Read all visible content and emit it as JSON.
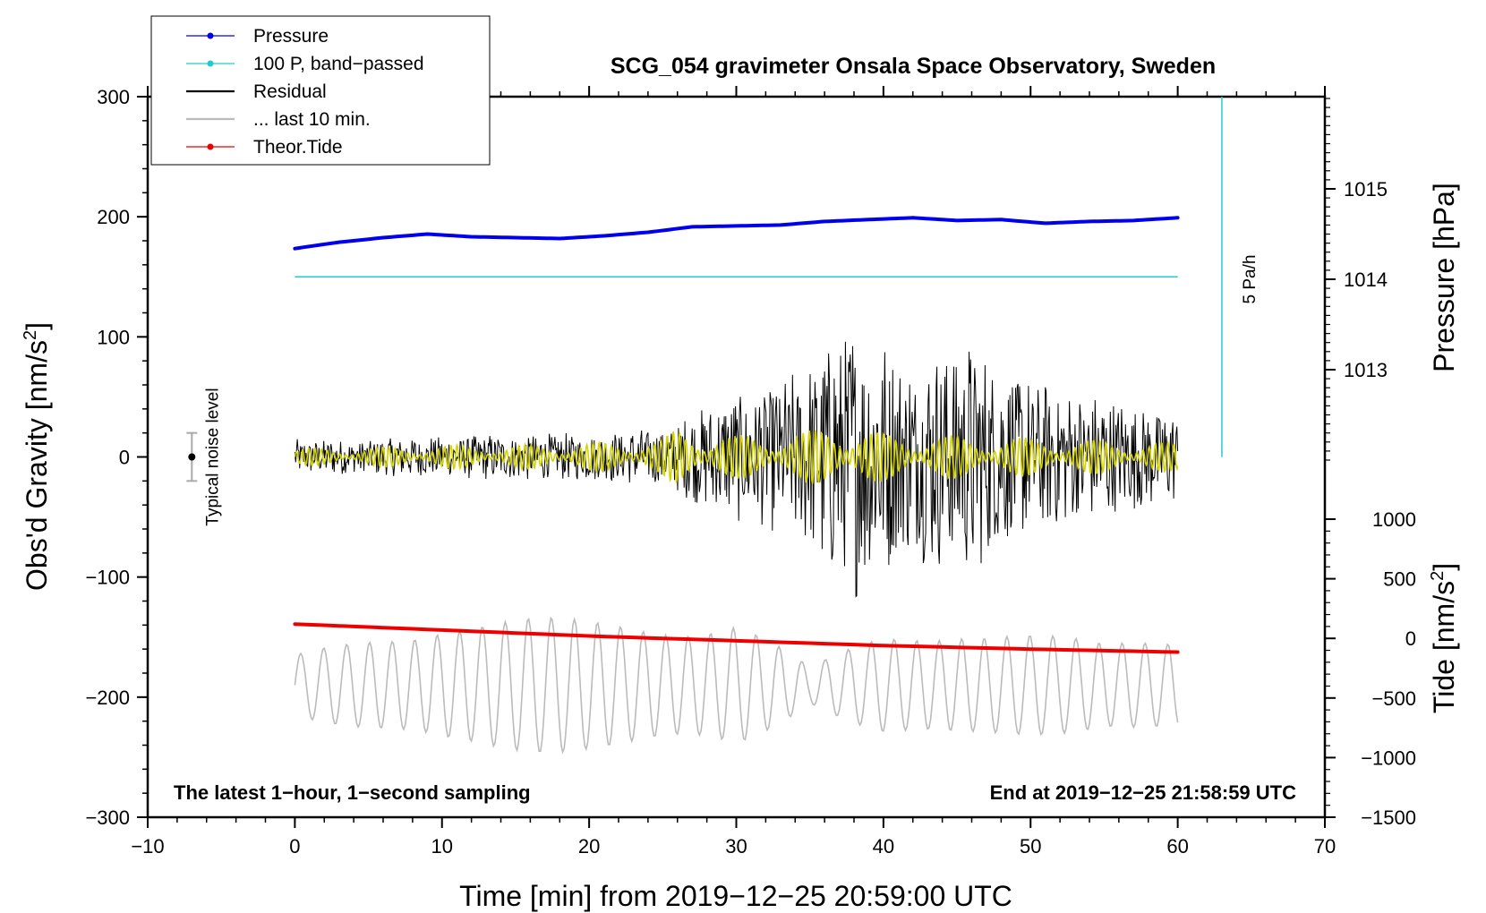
{
  "chart_data": {
    "type": "line",
    "title": "SCG_054 gravimeter Onsala Space Observatory, Sweden",
    "xlabel": "Time [min] from 2019−12−25 20:59:00 UTC",
    "ylabel_left": "Obs'd Gravity [nm/s",
    "ylabel_left_sup": "2",
    "ylabel_left_end": "]",
    "ylabel_right_pressure": "Pressure [hPa]",
    "ylabel_right_tide": "Tide [nm/s",
    "ylabel_right_tide_sup": "2",
    "ylabel_right_tide_end": "]",
    "xlim": [
      -10,
      70
    ],
    "ylim": [
      -300,
      300
    ],
    "pressure_axis_range": [
      1012.0,
      1016.0
    ],
    "tide_axis_range": [
      -1500,
      1500
    ],
    "x_ticks": [
      {
        "value": -10,
        "label": "−10"
      },
      {
        "value": 0,
        "label": "0"
      },
      {
        "value": 10,
        "label": "10"
      },
      {
        "value": 20,
        "label": "20"
      },
      {
        "value": 30,
        "label": "30"
      },
      {
        "value": 40,
        "label": "40"
      },
      {
        "value": 50,
        "label": "50"
      },
      {
        "value": 60,
        "label": "60"
      },
      {
        "value": 70,
        "label": "70"
      }
    ],
    "y_ticks": [
      {
        "value": 300,
        "label": "300"
      },
      {
        "value": 200,
        "label": "200"
      },
      {
        "value": 100,
        "label": "100"
      },
      {
        "value": 0,
        "label": "0"
      },
      {
        "value": -100,
        "label": "−100"
      },
      {
        "value": -200,
        "label": "−200"
      },
      {
        "value": -300,
        "label": "−300"
      }
    ],
    "pressure_ticks": [
      {
        "value": 1015,
        "label": "1015"
      },
      {
        "value": 1014,
        "label": "1014"
      },
      {
        "value": 1013,
        "label": "1013"
      }
    ],
    "tide_ticks": [
      {
        "value": 1000,
        "label": "1000"
      },
      {
        "value": 500,
        "label": "500"
      },
      {
        "value": 0,
        "label": "0"
      },
      {
        "value": -500,
        "label": "−500"
      },
      {
        "value": -1000,
        "label": "−1000"
      },
      {
        "value": -1500,
        "label": "−1500"
      }
    ],
    "legend": [
      {
        "name": "Pressure",
        "color": "#0000ee",
        "marker": true
      },
      {
        "name": "100 P, band−passed",
        "color": "#22cccc",
        "marker": true
      },
      {
        "name": "Residual",
        "color": "#000000",
        "marker": false
      },
      {
        "name": "... last 10 min.",
        "color": "#bbbbbb",
        "marker": false
      },
      {
        "name": "Theor.Tide",
        "color": "#ee0000",
        "marker": true
      }
    ],
    "series": [
      {
        "name": "Pressure",
        "color": "#0000ee",
        "axis": "pressure_hPa",
        "x": [
          0,
          3,
          6,
          9,
          12,
          15,
          18,
          21,
          24,
          27,
          30,
          33,
          36,
          39,
          42,
          45,
          48,
          51,
          54,
          57,
          60
        ],
        "values": [
          1014.34,
          1014.41,
          1014.46,
          1014.5,
          1014.47,
          1014.46,
          1014.45,
          1014.48,
          1014.52,
          1014.58,
          1014.59,
          1014.6,
          1014.64,
          1014.66,
          1014.68,
          1014.65,
          1014.66,
          1014.62,
          1014.64,
          1014.65,
          1014.68
        ]
      },
      {
        "name": "100 P, band-passed",
        "color": "#22cccc",
        "axis": "gravity_nm_s2",
        "x": [
          0,
          60
        ],
        "values": [
          150,
          150
        ]
      },
      {
        "name": "Residual",
        "color": "#000000",
        "axis": "gravity_nm_s2",
        "x": [
          0,
          5,
          10,
          15,
          20,
          25,
          28,
          30,
          33,
          35,
          36,
          37,
          38,
          39,
          40,
          42,
          44,
          46,
          48,
          50,
          53,
          56,
          58,
          60
        ],
        "amplitude": [
          15,
          15,
          18,
          20,
          20,
          25,
          45,
          55,
          65,
          80,
          100,
          110,
          120,
          110,
          100,
          85,
          95,
          100,
          80,
          65,
          55,
          50,
          45,
          40
        ]
      },
      {
        "name": "Residual (band-passed)",
        "color": "#d4d400",
        "axis": "gravity_nm_s2",
        "x": [
          0,
          5,
          10,
          15,
          20,
          25,
          26,
          30,
          35,
          37,
          40,
          45,
          50,
          55,
          60
        ],
        "amplitude": [
          7,
          8,
          10,
          10,
          12,
          15,
          25,
          18,
          22,
          30,
          20,
          18,
          16,
          14,
          12
        ]
      },
      {
        "name": "... last 10 min.",
        "color": "#bbbbbb",
        "axis": "gravity_nm_s2",
        "center": -200,
        "x": [
          0,
          10,
          20,
          30,
          35,
          40,
          45,
          50,
          55,
          60
        ],
        "amplitude": [
          25,
          60,
          55,
          60,
          15,
          45,
          55,
          45,
          35,
          45
        ]
      },
      {
        "name": "Theor.Tide",
        "color": "#ee0000",
        "axis": "tide_nm_s2",
        "x": [
          0,
          10,
          20,
          30,
          40,
          50,
          60
        ],
        "values": [
          120,
          70,
          20,
          -20,
          -60,
          -90,
          -115
        ]
      }
    ],
    "scale_bar": {
      "label": "5 Pa/h",
      "x": 63,
      "from": 300,
      "to": 0,
      "color": "#22cccc"
    },
    "noise_level": {
      "label": "Typical noise level",
      "x": -7,
      "center": 0,
      "half_range": 20
    },
    "note_left": "The latest 1−hour, 1−second sampling",
    "note_right": "End at 2019−12−25 21:58:59 UTC"
  }
}
